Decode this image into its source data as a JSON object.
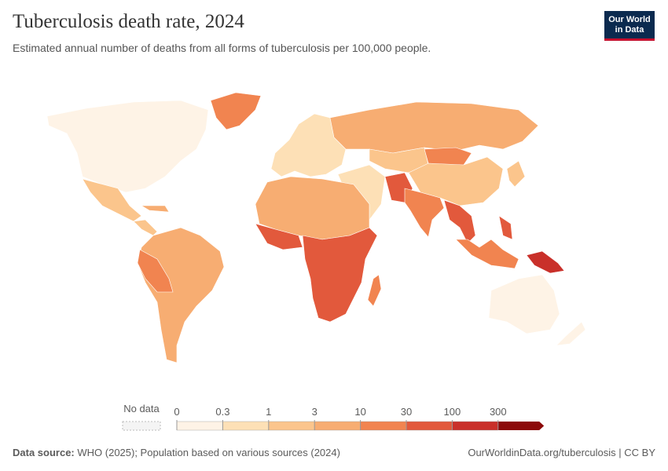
{
  "header": {
    "title": "Tuberculosis death rate, 2024",
    "subtitle": "Estimated annual number of deaths from all forms of tuberculosis per 100,000 people."
  },
  "logo": [
    "Our World",
    "in Data"
  ],
  "legend": {
    "no_data": "No data",
    "ticks": [
      0,
      0.3,
      1,
      3,
      10,
      30,
      100,
      300
    ],
    "colors": [
      "#fef3e6",
      "#fde0b6",
      "#fbc58c",
      "#f7ad72",
      "#f18450",
      "#e2593c",
      "#c9302a",
      "#8c0a0a"
    ]
  },
  "footer": {
    "source_label": "Data source:",
    "source": "WHO (2025); Population based on various sources (2024)",
    "link": "OurWorldinData.org/tuberculosis | CC BY"
  }
}
